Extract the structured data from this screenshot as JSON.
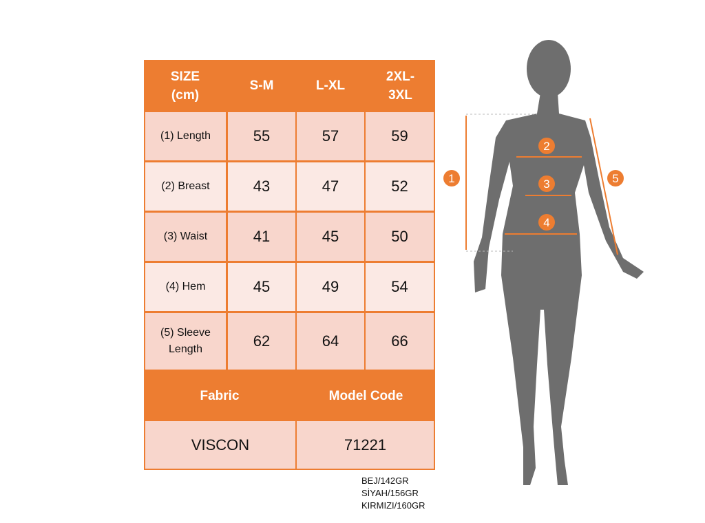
{
  "table": {
    "headers": [
      "SIZE\n(cm)",
      "S-M",
      "L-XL",
      "2XL-\n3XL"
    ],
    "rows": [
      {
        "label": "(1) Length",
        "values": [
          "55",
          "57",
          "59"
        ]
      },
      {
        "label": "(2) Breast",
        "values": [
          "43",
          "47",
          "52"
        ]
      },
      {
        "label": "(3) Waist",
        "values": [
          "41",
          "45",
          "50"
        ]
      },
      {
        "label": "(4) Hem",
        "values": [
          "45",
          "49",
          "54"
        ]
      },
      {
        "label": "(5) Sleeve Length",
        "values": [
          "62",
          "64",
          "66"
        ]
      }
    ],
    "fabric_header": "Fabric",
    "model_header": "Model Code",
    "fabric": "VISCON",
    "model_code": "71221"
  },
  "notes": [
    "BEJ/142GR",
    "SİYAH/156GR",
    "KIRMIZI/160GR"
  ],
  "figure": {
    "markers": [
      "1",
      "2",
      "3",
      "4",
      "5"
    ]
  },
  "colors": {
    "accent": "#ed7d31",
    "row_dark": "#f8d6cc",
    "row_light": "#fbe9e4",
    "silhouette": "#6e6e6e"
  }
}
